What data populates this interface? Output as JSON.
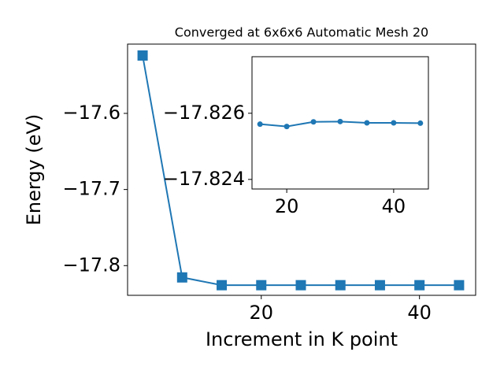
{
  "chart_data": [
    {
      "type": "line",
      "title": "Converged at 6x6x6 Automatic Mesh 20",
      "xlabel": "Increment in K point",
      "ylabel": "Energy (eV)",
      "x": [
        5,
        10,
        15,
        20,
        25,
        30,
        35,
        40,
        45
      ],
      "series": [
        {
          "color": "#1f77b4",
          "marker": "square",
          "values": [
            -17.524,
            -17.8155,
            -17.8257,
            -17.8257,
            -17.8257,
            -17.8257,
            -17.8257,
            -17.8257,
            -17.8257
          ]
        }
      ],
      "xlim": [
        3.1,
        47.1
      ],
      "xticks": [
        20,
        40
      ],
      "ylim": [
        -17.839,
        -17.509
      ],
      "yticks": [
        {
          "value": -17.8,
          "label": "−17.8"
        },
        {
          "value": -17.7,
          "label": "−17.7"
        },
        {
          "value": -17.6,
          "label": "−17.6"
        }
      ]
    },
    {
      "type": "line",
      "x": [
        15,
        20,
        25,
        30,
        35,
        40,
        45
      ],
      "series": [
        {
          "color": "#1f77b4",
          "marker": "circle",
          "values": [
            -17.82567,
            -17.8256,
            -17.82574,
            -17.82575,
            -17.82571,
            -17.82571,
            -17.8257
          ]
        }
      ],
      "xlim": [
        13.5,
        46.5
      ],
      "xticks": [
        20,
        40
      ],
      "ylim": [
        -17.82371,
        -17.82771
      ],
      "yticks": [
        {
          "value": -17.824,
          "label": "−17.824"
        },
        {
          "value": -17.826,
          "label": "−17.826"
        }
      ]
    }
  ]
}
